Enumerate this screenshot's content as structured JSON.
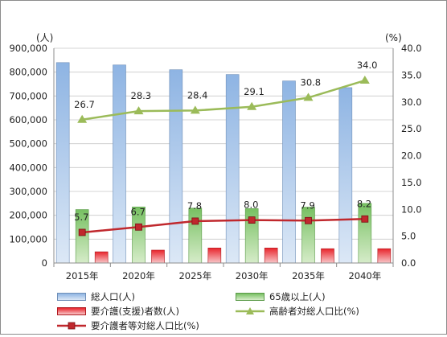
{
  "chart_data": {
    "type": "bar",
    "categories": [
      "2015年",
      "2020年",
      "2025年",
      "2030年",
      "2035年",
      "2040年"
    ],
    "series": [
      {
        "name": "総人口(人)",
        "kind": "bar",
        "axis": "left",
        "values": [
          840000,
          830000,
          810000,
          790000,
          763000,
          735000
        ],
        "color": "#8eb4e3"
      },
      {
        "name": "65歳以上(人)",
        "kind": "bar",
        "axis": "left",
        "values": [
          224000,
          235000,
          230000,
          228000,
          234000,
          250000
        ],
        "color": "#77c062"
      },
      {
        "name": "要介護(支援)者数(人)",
        "kind": "bar",
        "axis": "left",
        "values": [
          47000,
          54000,
          63000,
          63000,
          60000,
          60000
        ],
        "color": "#e8242b"
      },
      {
        "name": "高齢者対総人口比(%)",
        "kind": "line",
        "axis": "right",
        "values": [
          26.7,
          28.3,
          28.4,
          29.1,
          30.8,
          34.0
        ],
        "labels": [
          "26.7",
          "28.3",
          "28.4",
          "29.1",
          "30.8",
          "34.0"
        ],
        "color": "#9bbb59"
      },
      {
        "name": "要介護者等対総人口比(%)",
        "kind": "line",
        "axis": "right",
        "values": [
          5.7,
          6.7,
          7.8,
          8.0,
          7.9,
          8.2
        ],
        "labels": [
          "5.7",
          "6.7",
          "7.8",
          "8.0",
          "7.9",
          "8.2"
        ],
        "color": "#c0282d"
      }
    ],
    "y_left": {
      "unit": "(人)",
      "range": [
        0,
        900000
      ],
      "ticks": [
        "0",
        "100,000",
        "200,000",
        "300,000",
        "400,000",
        "500,000",
        "600,000",
        "700,000",
        "800,000",
        "900,000"
      ]
    },
    "y_right": {
      "unit": "(%)",
      "range": [
        0,
        40
      ],
      "ticks": [
        "0.0",
        "5.0",
        "10.0",
        "15.0",
        "20.0",
        "25.0",
        "30.0",
        "35.0",
        "40.0"
      ]
    },
    "grid": true,
    "legend": "bottom"
  }
}
